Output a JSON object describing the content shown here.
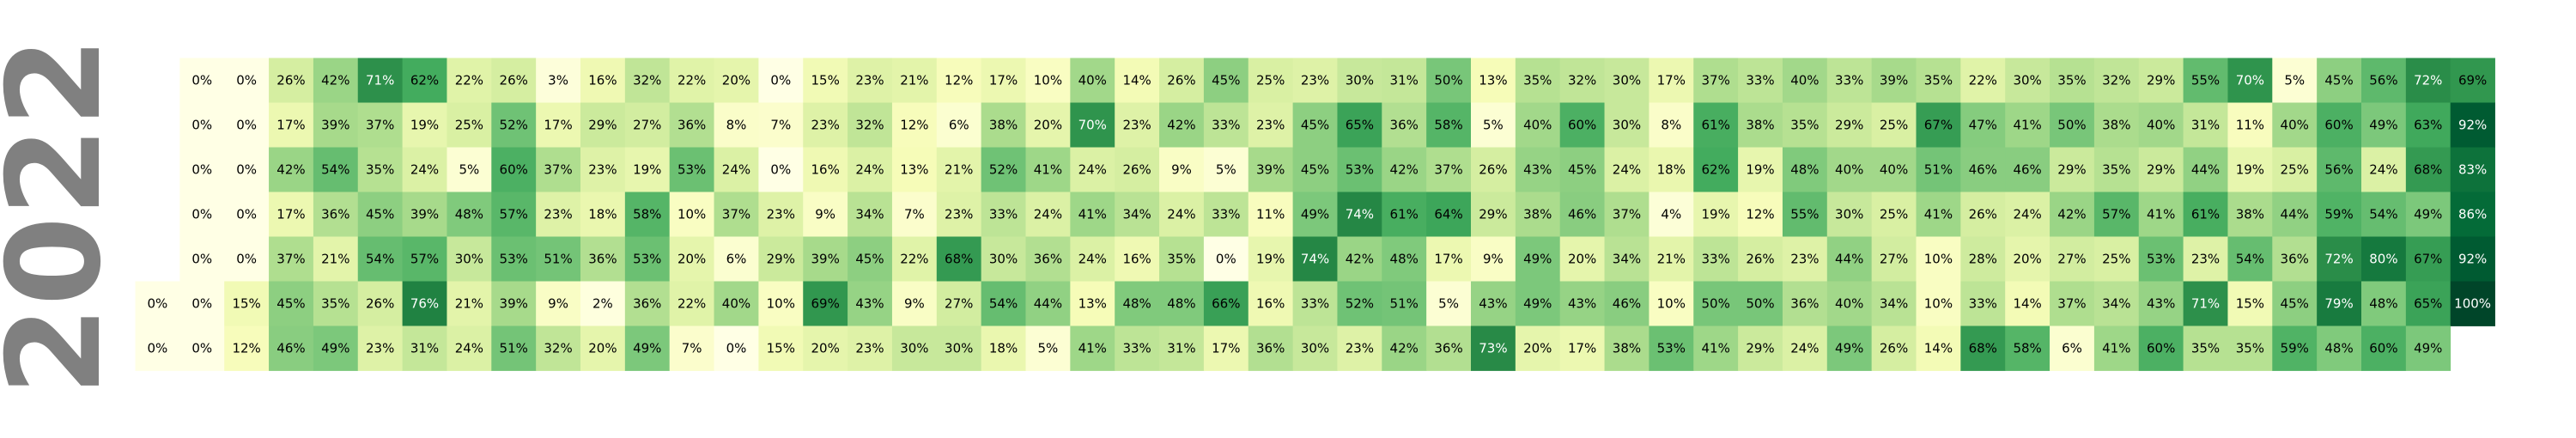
{
  "chart_data": {
    "type": "heatmap",
    "title": "2022",
    "value_format": "percent",
    "colormap": "YlGn",
    "vmin": 0,
    "vmax": 100,
    "grid": false,
    "legend": "none",
    "rows": 7,
    "row_values": [
      [
        null,
        0,
        0,
        26,
        42,
        71,
        62,
        22,
        26,
        3,
        16,
        32,
        22,
        20,
        0,
        15,
        23,
        21,
        12,
        17,
        10,
        40,
        14,
        26,
        45,
        25,
        23,
        30,
        31,
        50,
        13,
        35,
        32,
        30,
        17,
        37,
        33,
        40,
        33,
        39,
        35,
        22,
        30,
        35,
        32,
        29,
        55,
        70,
        5,
        45,
        56,
        72,
        69
      ],
      [
        null,
        0,
        0,
        17,
        39,
        37,
        19,
        25,
        52,
        17,
        29,
        27,
        36,
        8,
        7,
        23,
        32,
        12,
        6,
        38,
        20,
        70,
        23,
        42,
        33,
        23,
        45,
        65,
        36,
        58,
        5,
        40,
        60,
        30,
        8,
        61,
        38,
        35,
        29,
        25,
        67,
        47,
        41,
        50,
        38,
        40,
        31,
        11,
        40,
        60,
        49,
        63,
        92
      ],
      [
        null,
        0,
        0,
        42,
        54,
        35,
        24,
        5,
        60,
        37,
        23,
        19,
        53,
        24,
        0,
        16,
        24,
        13,
        21,
        52,
        41,
        24,
        26,
        9,
        5,
        39,
        45,
        53,
        42,
        37,
        26,
        43,
        45,
        24,
        18,
        62,
        19,
        48,
        40,
        40,
        51,
        46,
        46,
        29,
        35,
        29,
        44,
        19,
        25,
        56,
        24,
        68,
        83
      ],
      [
        null,
        0,
        0,
        17,
        36,
        45,
        39,
        48,
        57,
        23,
        18,
        58,
        10,
        37,
        23,
        9,
        34,
        7,
        23,
        33,
        24,
        41,
        34,
        24,
        33,
        11,
        49,
        74,
        61,
        64,
        29,
        38,
        46,
        37,
        4,
        19,
        12,
        55,
        30,
        25,
        41,
        26,
        24,
        42,
        57,
        41,
        61,
        38,
        44,
        59,
        54,
        49,
        86
      ],
      [
        null,
        0,
        0,
        37,
        21,
        54,
        57,
        30,
        53,
        51,
        36,
        53,
        20,
        6,
        29,
        39,
        45,
        22,
        68,
        30,
        36,
        24,
        16,
        35,
        0,
        19,
        74,
        42,
        48,
        17,
        9,
        49,
        20,
        34,
        21,
        33,
        26,
        23,
        44,
        27,
        10,
        28,
        20,
        27,
        25,
        53,
        23,
        54,
        36,
        72,
        80,
        67,
        92
      ],
      [
        0,
        0,
        15,
        45,
        35,
        26,
        76,
        21,
        39,
        9,
        2,
        36,
        22,
        40,
        10,
        69,
        43,
        9,
        27,
        54,
        44,
        13,
        48,
        48,
        66,
        16,
        33,
        52,
        51,
        5,
        43,
        49,
        43,
        46,
        10,
        50,
        50,
        36,
        40,
        34,
        10,
        33,
        14,
        37,
        34,
        43,
        71,
        15,
        45,
        79,
        48,
        65,
        100
      ],
      [
        0,
        0,
        12,
        46,
        49,
        23,
        31,
        24,
        51,
        32,
        20,
        49,
        7,
        0,
        15,
        20,
        23,
        30,
        30,
        18,
        5,
        41,
        33,
        31,
        17,
        36,
        30,
        23,
        42,
        36,
        73,
        20,
        17,
        38,
        53,
        41,
        29,
        24,
        49,
        26,
        14,
        68,
        58,
        6,
        41,
        60,
        35,
        35,
        59,
        48,
        60,
        49,
        null
      ]
    ]
  }
}
